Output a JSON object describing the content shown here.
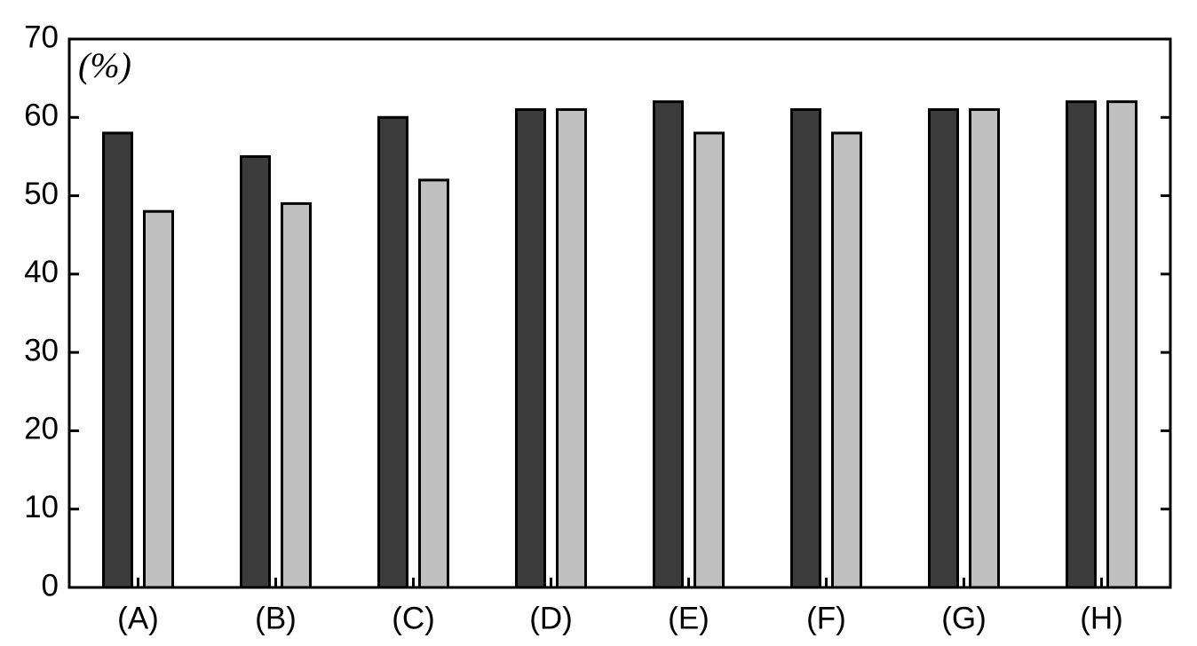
{
  "chart_data": {
    "type": "bar",
    "ylabel": "(%)",
    "categories": [
      "(A)",
      "(B)",
      "(C)",
      "(D)",
      "(E)",
      "(F)",
      "(G)",
      "(H)"
    ],
    "series": [
      {
        "color": "#3c3c3c",
        "values": [
          58,
          55,
          60,
          61,
          62,
          61,
          61,
          62
        ]
      },
      {
        "color": "#c0c0c0",
        "values": [
          48,
          49,
          52,
          61,
          58,
          58,
          61,
          62
        ]
      }
    ],
    "ylim": [
      0,
      70
    ],
    "yticks": [
      0,
      10,
      20,
      30,
      40,
      50,
      60,
      70
    ],
    "grid": false
  }
}
